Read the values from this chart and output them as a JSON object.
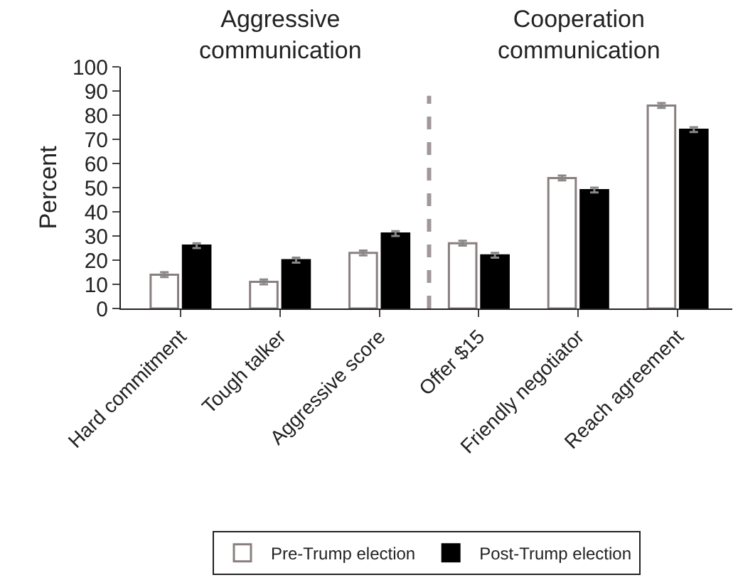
{
  "chart_data": {
    "type": "bar",
    "ylabel": "Percent",
    "categories": [
      "Hard commitment",
      "Tough talker",
      "Aggressive score",
      "Offer $15",
      "Friendly negotiator",
      "Reach agreement"
    ],
    "series": [
      {
        "name": "Pre-Trump election",
        "color": "#ffffff",
        "values": [
          14,
          11,
          23,
          27,
          54,
          84
        ],
        "errors": [
          1,
          1,
          1,
          1,
          1,
          1
        ]
      },
      {
        "name": "Post-Trump election",
        "color": "#000000",
        "values": [
          26,
          20,
          31,
          22,
          49,
          74
        ],
        "errors": [
          1,
          1,
          1,
          1,
          1,
          1
        ]
      }
    ],
    "ylim": [
      0,
      100
    ],
    "yticks": [
      0,
      10,
      20,
      30,
      40,
      50,
      60,
      70,
      80,
      90,
      100
    ],
    "annotations": [
      "Aggressive communication",
      "Cooperation communication"
    ],
    "legend": "bottom"
  }
}
